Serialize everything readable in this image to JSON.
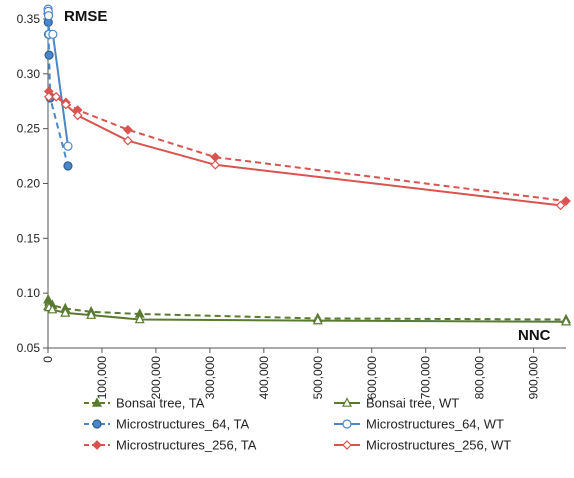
{
  "chart_data": {
    "type": "line",
    "ylabel": "RMSE",
    "xlabel": "NNC",
    "xlim": [
      0,
      960000
    ],
    "ylim": [
      0.05,
      0.36
    ],
    "xticks": [
      0,
      100000,
      200000,
      300000,
      400000,
      500000,
      600000,
      700000,
      800000,
      900000
    ],
    "xtick_labels": [
      "0",
      "100,000",
      "200,000",
      "300,000",
      "400,000",
      "500,000",
      "600,000",
      "700,000",
      "800,000",
      "900,000"
    ],
    "yticks": [
      0.05,
      0.1,
      0.15,
      0.2,
      0.25,
      0.3,
      0.35
    ],
    "ytick_labels": [
      "0.05",
      "0.10",
      "0.15",
      "0.20",
      "0.25",
      "0.30",
      "0.35"
    ],
    "grid": false,
    "legend_position": "bottom",
    "series": [
      {
        "name": "Bonsai tree, TA",
        "color": "#5a7a32",
        "dash": "dashed",
        "marker": "triangle-filled",
        "x": [
          200,
          2000,
          8000,
          32000,
          80000,
          170000,
          500000,
          960000
        ],
        "y": [
          0.094,
          0.092,
          0.089,
          0.086,
          0.083,
          0.081,
          0.077,
          0.076
        ]
      },
      {
        "name": "Bonsai tree, WT",
        "color": "#5a7a32",
        "dash": "solid",
        "marker": "triangle-open",
        "x": [
          200,
          2000,
          8000,
          32000,
          80000,
          170000,
          500000,
          960000
        ],
        "y": [
          0.088,
          0.087,
          0.085,
          0.082,
          0.08,
          0.076,
          0.075,
          0.074
        ]
      },
      {
        "name": "Microstructures_64, TA",
        "color": "#4a86c8",
        "dash": "dashed",
        "marker": "circle-filled",
        "x": [
          200,
          500,
          1000,
          2000,
          4000,
          37000
        ],
        "y": [
          0.355,
          0.347,
          0.336,
          0.317,
          0.278,
          0.216
        ]
      },
      {
        "name": "Microstructures_64, WT",
        "color": "#4a86c8",
        "dash": "solid",
        "marker": "circle-open",
        "x": [
          200,
          500,
          1000,
          2000,
          9000,
          37000
        ],
        "y": [
          0.359,
          0.357,
          0.353,
          0.336,
          0.336,
          0.234
        ]
      },
      {
        "name": "Microstructures_256, TA",
        "color": "#d9534f",
        "dash": "dashed",
        "marker": "diamond-filled",
        "x": [
          1500,
          15000,
          33000,
          55000,
          148000,
          310000,
          960000
        ],
        "y": [
          0.284,
          0.279,
          0.274,
          0.267,
          0.249,
          0.224,
          0.184
        ]
      },
      {
        "name": "Microstructures_256, WT",
        "color": "#d9534f",
        "dash": "solid",
        "marker": "diamond-open",
        "x": [
          1500,
          15000,
          33000,
          55000,
          148000,
          310000,
          950000
        ],
        "y": [
          0.279,
          0.279,
          0.272,
          0.262,
          0.239,
          0.217,
          0.18
        ]
      }
    ]
  }
}
